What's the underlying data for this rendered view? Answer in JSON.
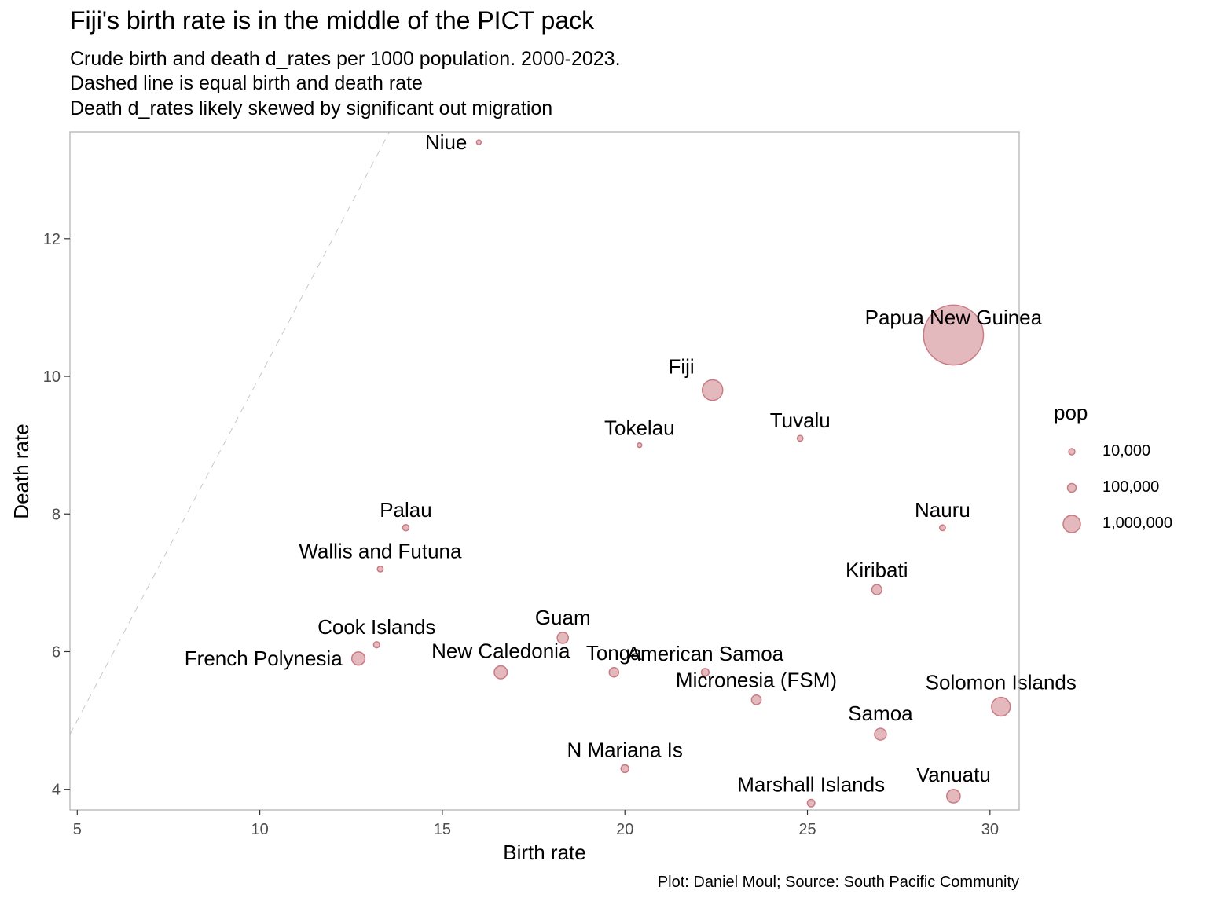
{
  "title": "Fiji's birth rate is in the middle of the PICT pack",
  "subtitle_lines": [
    "Crude birth and death d_rates per 1000 population. 2000-2023.",
    "Dashed line is equal birth and death rate",
    "Death d_rates likely skewed by significant out migration"
  ],
  "caption": "Plot: Daniel Moul; Source: South Pacific Community",
  "colors": {
    "point_fill": "#d4949b",
    "point_stroke": "#c97a82",
    "panel_border": "#b3b3b3",
    "diagonal": "#c8c8c8",
    "axis_text": "#4d4d4d"
  },
  "chart_data": {
    "type": "scatter",
    "xlabel": "Birth rate",
    "ylabel": "Death rate",
    "xlim": [
      4.8,
      30.8
    ],
    "ylim": [
      3.7,
      13.55
    ],
    "x_ticks": [
      5,
      10,
      15,
      20,
      25,
      30
    ],
    "y_ticks": [
      4,
      6,
      8,
      10,
      12
    ],
    "grid": false,
    "reference_line": "equal birth and death rate (y = x), dashed",
    "size_variable": "pop",
    "legend": {
      "title": "pop",
      "position": "right",
      "entries": [
        {
          "label": "10,000",
          "value": 10000
        },
        {
          "label": "100,000",
          "value": 100000
        },
        {
          "label": "1,000,000",
          "value": 1000000
        }
      ]
    },
    "points": [
      {
        "label": "Niue",
        "x": 16.0,
        "y": 13.4,
        "pop": 1700,
        "label_side": "left"
      },
      {
        "label": "Papua New Guinea",
        "x": 29.0,
        "y": 10.6,
        "pop": 10300000,
        "label_side": "top"
      },
      {
        "label": "Fiji",
        "x": 22.4,
        "y": 9.8,
        "pop": 900000,
        "label_side": "top-left"
      },
      {
        "label": "Tokelau",
        "x": 20.4,
        "y": 9.0,
        "pop": 1500,
        "label_side": "top"
      },
      {
        "label": "Tuvalu",
        "x": 24.8,
        "y": 9.1,
        "pop": 11000,
        "label_side": "top"
      },
      {
        "label": "Palau",
        "x": 14.0,
        "y": 7.8,
        "pop": 18000,
        "label_side": "top"
      },
      {
        "label": "Nauru",
        "x": 28.7,
        "y": 7.8,
        "pop": 12000,
        "label_side": "top"
      },
      {
        "label": "Wallis and Futuna",
        "x": 13.3,
        "y": 7.2,
        "pop": 11500,
        "label_side": "top"
      },
      {
        "label": "Kiribati",
        "x": 26.9,
        "y": 6.9,
        "pop": 120000,
        "label_side": "top"
      },
      {
        "label": "Cook Islands",
        "x": 13.2,
        "y": 6.1,
        "pop": 15000,
        "label_side": "top"
      },
      {
        "label": "Guam",
        "x": 18.3,
        "y": 6.2,
        "pop": 170000,
        "label_side": "top"
      },
      {
        "label": "French Polynesia",
        "x": 12.7,
        "y": 5.9,
        "pop": 280000,
        "label_side": "left"
      },
      {
        "label": "New Caledonia",
        "x": 16.6,
        "y": 5.7,
        "pop": 270000,
        "label_side": "top"
      },
      {
        "label": "Tonga",
        "x": 19.7,
        "y": 5.7,
        "pop": 100000,
        "label_side": "top"
      },
      {
        "label": "American Samoa",
        "x": 22.2,
        "y": 5.7,
        "pop": 45000,
        "label_side": "top"
      },
      {
        "label": "Micronesia (FSM)",
        "x": 23.6,
        "y": 5.3,
        "pop": 105000,
        "label_side": "top"
      },
      {
        "label": "Solomon Islands",
        "x": 30.3,
        "y": 5.2,
        "pop": 720000,
        "label_side": "top"
      },
      {
        "label": "Samoa",
        "x": 27.0,
        "y": 4.8,
        "pop": 200000,
        "label_side": "top"
      },
      {
        "label": "N Mariana Is",
        "x": 20.0,
        "y": 4.3,
        "pop": 48000,
        "label_side": "top"
      },
      {
        "label": "Vanuatu",
        "x": 29.0,
        "y": 3.9,
        "pop": 300000,
        "label_side": "top"
      },
      {
        "label": "Marshall Islands",
        "x": 25.1,
        "y": 3.8,
        "pop": 42000,
        "label_side": "top"
      }
    ]
  }
}
